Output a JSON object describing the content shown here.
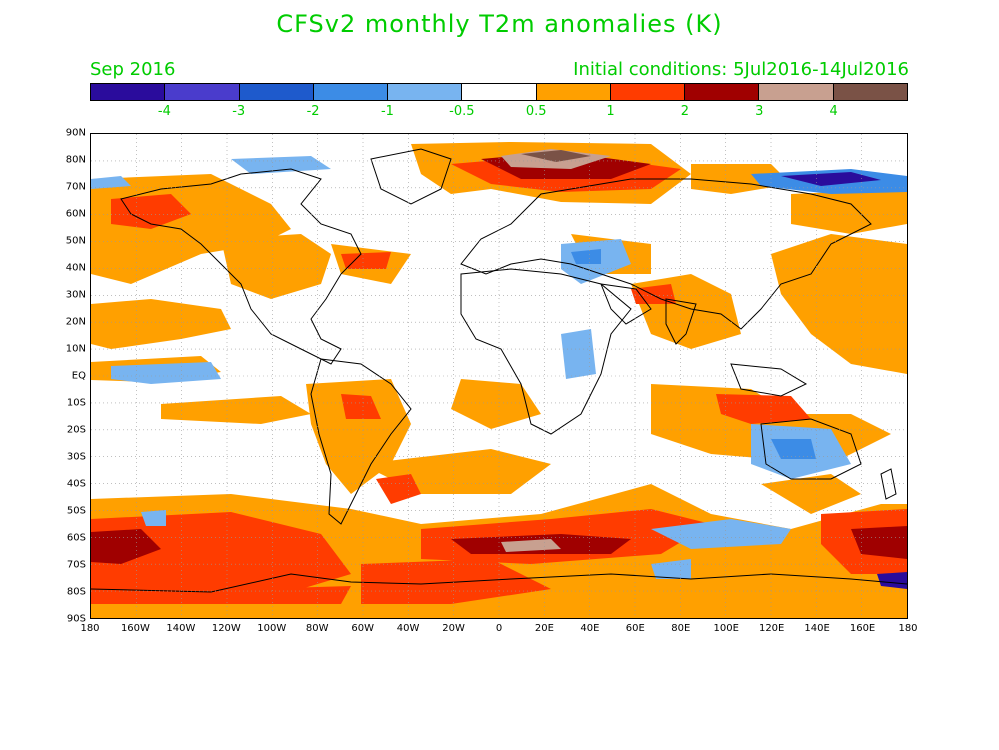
{
  "title": "CFSv2 monthly T2m anomalies (K)",
  "subtitle_left": "Sep 2016",
  "subtitle_right": "Initial conditions: 5Jul2016-14Jul2016",
  "colorbar": {
    "colors": [
      "#2a0c9c",
      "#4a3ccc",
      "#1e5acc",
      "#3c8ce6",
      "#78b4f0",
      "#ffffff",
      "#ffa000",
      "#ff3c00",
      "#a00000",
      "#c8a090",
      "#7a5246"
    ],
    "labels": [
      "-4",
      "-3",
      "-2",
      "-1",
      "-0.5",
      "0.5",
      "1",
      "2",
      "3",
      "4"
    ]
  },
  "map": {
    "lat_labels": [
      "90N",
      "80N",
      "70N",
      "60N",
      "50N",
      "40N",
      "30N",
      "20N",
      "10N",
      "EQ",
      "10S",
      "20S",
      "30S",
      "40S",
      "50S",
      "60S",
      "70S",
      "80S",
      "90S"
    ],
    "lon_labels": [
      "180",
      "160W",
      "140W",
      "120W",
      "100W",
      "80W",
      "60W",
      "40W",
      "20W",
      "0",
      "20E",
      "40E",
      "60E",
      "80E",
      "100E",
      "120E",
      "140E",
      "160E",
      "180"
    ]
  }
}
